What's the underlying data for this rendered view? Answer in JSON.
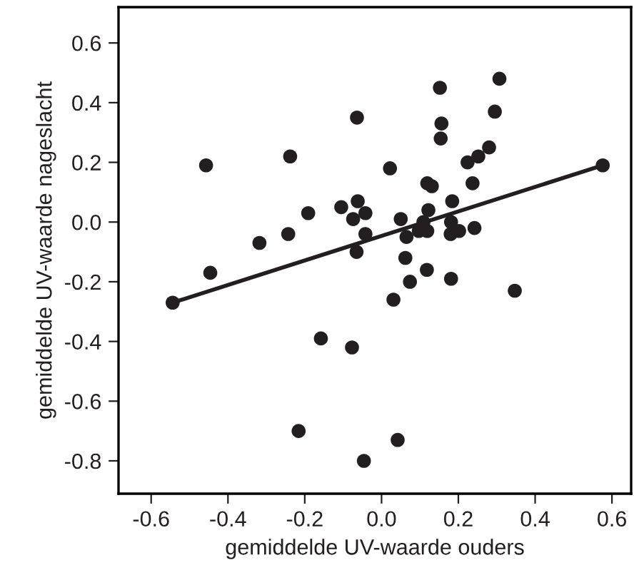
{
  "chart_data": {
    "type": "scatter",
    "xlabel": "gemiddelde UV-waarde ouders",
    "ylabel": "gemiddelde UV-waarde nageslacht",
    "xlim": [
      -0.685,
      0.65
    ],
    "ylim": [
      -0.91,
      0.72
    ],
    "xticks": [
      {
        "value": -0.6,
        "label": "-0.6"
      },
      {
        "value": -0.4,
        "label": "-0.4"
      },
      {
        "value": -0.2,
        "label": "-0.2"
      },
      {
        "value": 0.0,
        "label": "0.0"
      },
      {
        "value": 0.2,
        "label": "0.2"
      },
      {
        "value": 0.4,
        "label": "0.4"
      },
      {
        "value": 0.6,
        "label": "0.6"
      }
    ],
    "yticks": [
      {
        "value": -0.8,
        "label": "-0.8"
      },
      {
        "value": -0.6,
        "label": "-0.6"
      },
      {
        "value": -0.4,
        "label": "-0.4"
      },
      {
        "value": -0.2,
        "label": "-0.2"
      },
      {
        "value": 0.0,
        "label": "0.0"
      },
      {
        "value": 0.2,
        "label": "0.2"
      },
      {
        "value": 0.4,
        "label": "0.4"
      },
      {
        "value": 0.6,
        "label": "0.6"
      }
    ],
    "grid": false,
    "marker": "circle",
    "series": [
      {
        "color": "#231f20",
        "x": [
          0.307,
          0.152,
          -0.064,
          0.295,
          0.156,
          0.154,
          -0.238,
          -0.457,
          0.022,
          0.28,
          0.252,
          0.224,
          0.576,
          0.119,
          0.131,
          0.237,
          0.184,
          -0.062,
          -0.105,
          -0.191,
          -0.042,
          -0.074,
          0.122,
          0.05,
          0.109,
          0.097,
          0.119,
          0.181,
          0.202,
          0.18,
          0.242,
          -0.243,
          -0.042,
          0.065,
          -0.318,
          -0.065,
          0.062,
          -0.446,
          0.118,
          0.074,
          0.181,
          -0.544,
          0.347,
          0.031,
          -0.158,
          -0.077,
          -0.216,
          0.042,
          -0.046
        ],
        "values": [
          0.48,
          0.45,
          0.35,
          0.37,
          0.33,
          0.28,
          0.22,
          0.19,
          0.18,
          0.25,
          0.22,
          0.2,
          0.19,
          0.13,
          0.12,
          0.13,
          0.07,
          0.07,
          0.05,
          0.03,
          0.03,
          0.01,
          0.04,
          0.01,
          0.0,
          -0.03,
          -0.03,
          0.0,
          -0.03,
          -0.04,
          -0.02,
          -0.04,
          -0.04,
          -0.05,
          -0.07,
          -0.1,
          -0.12,
          -0.17,
          -0.16,
          -0.2,
          -0.19,
          -0.27,
          -0.23,
          -0.26,
          -0.39,
          -0.42,
          -0.7,
          -0.73,
          -0.8
        ]
      },
      {
        "type": "line",
        "color": "#231f20",
        "marker": "none",
        "line_style": "solid",
        "x": [
          -0.544,
          0.576
        ],
        "values": [
          -0.27,
          0.19
        ]
      }
    ]
  }
}
